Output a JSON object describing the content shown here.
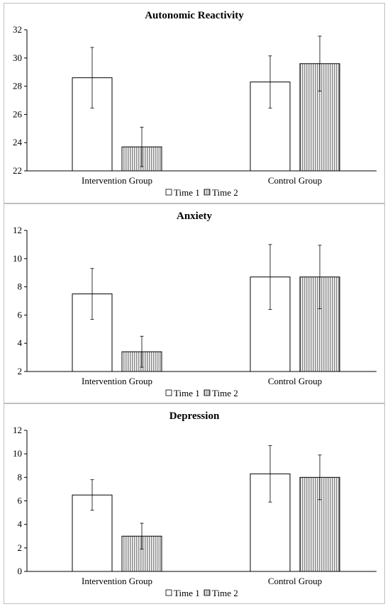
{
  "colors": {
    "time1_fill": "#ffffff",
    "time2_fill": "#cfcfcf",
    "bar_stroke": "#000000",
    "axis": "#000000",
    "panel_border": "#bfbfbf"
  },
  "chart_data": [
    {
      "type": "bar",
      "title": "Autonomic Reactivity",
      "categories": [
        "Intervention Group",
        "Control Group"
      ],
      "series": [
        {
          "name": "Time 1",
          "values": [
            28.6,
            28.3
          ],
          "error": [
            2.15,
            1.85
          ]
        },
        {
          "name": "Time 2",
          "values": [
            23.7,
            29.6
          ],
          "error": [
            1.4,
            1.95
          ]
        }
      ],
      "ylim": [
        22,
        32
      ],
      "yticks": [
        22,
        24,
        26,
        28,
        30,
        32
      ],
      "grid": false,
      "legend_position": "bottom"
    },
    {
      "type": "bar",
      "title": "Anxiety",
      "categories": [
        "Intervention Group",
        "Control Group"
      ],
      "series": [
        {
          "name": "Time 1",
          "values": [
            7.5,
            8.7
          ],
          "error": [
            1.8,
            2.3
          ]
        },
        {
          "name": "Time 2",
          "values": [
            3.4,
            8.7
          ],
          "error": [
            1.1,
            2.25
          ]
        }
      ],
      "ylim": [
        2,
        12
      ],
      "yticks": [
        2,
        4,
        6,
        8,
        10,
        12
      ],
      "grid": false,
      "legend_position": "bottom"
    },
    {
      "type": "bar",
      "title": "Depression",
      "categories": [
        "Intervention Group",
        "Control Group"
      ],
      "series": [
        {
          "name": "Time 1",
          "values": [
            6.5,
            8.3
          ],
          "error": [
            1.3,
            2.4
          ]
        },
        {
          "name": "Time 2",
          "values": [
            3.0,
            8.0
          ],
          "error": [
            1.1,
            1.9
          ]
        }
      ],
      "ylim": [
        0,
        12
      ],
      "yticks": [
        0,
        2,
        4,
        6,
        8,
        10,
        12
      ],
      "grid": false,
      "legend_position": "bottom"
    }
  ]
}
